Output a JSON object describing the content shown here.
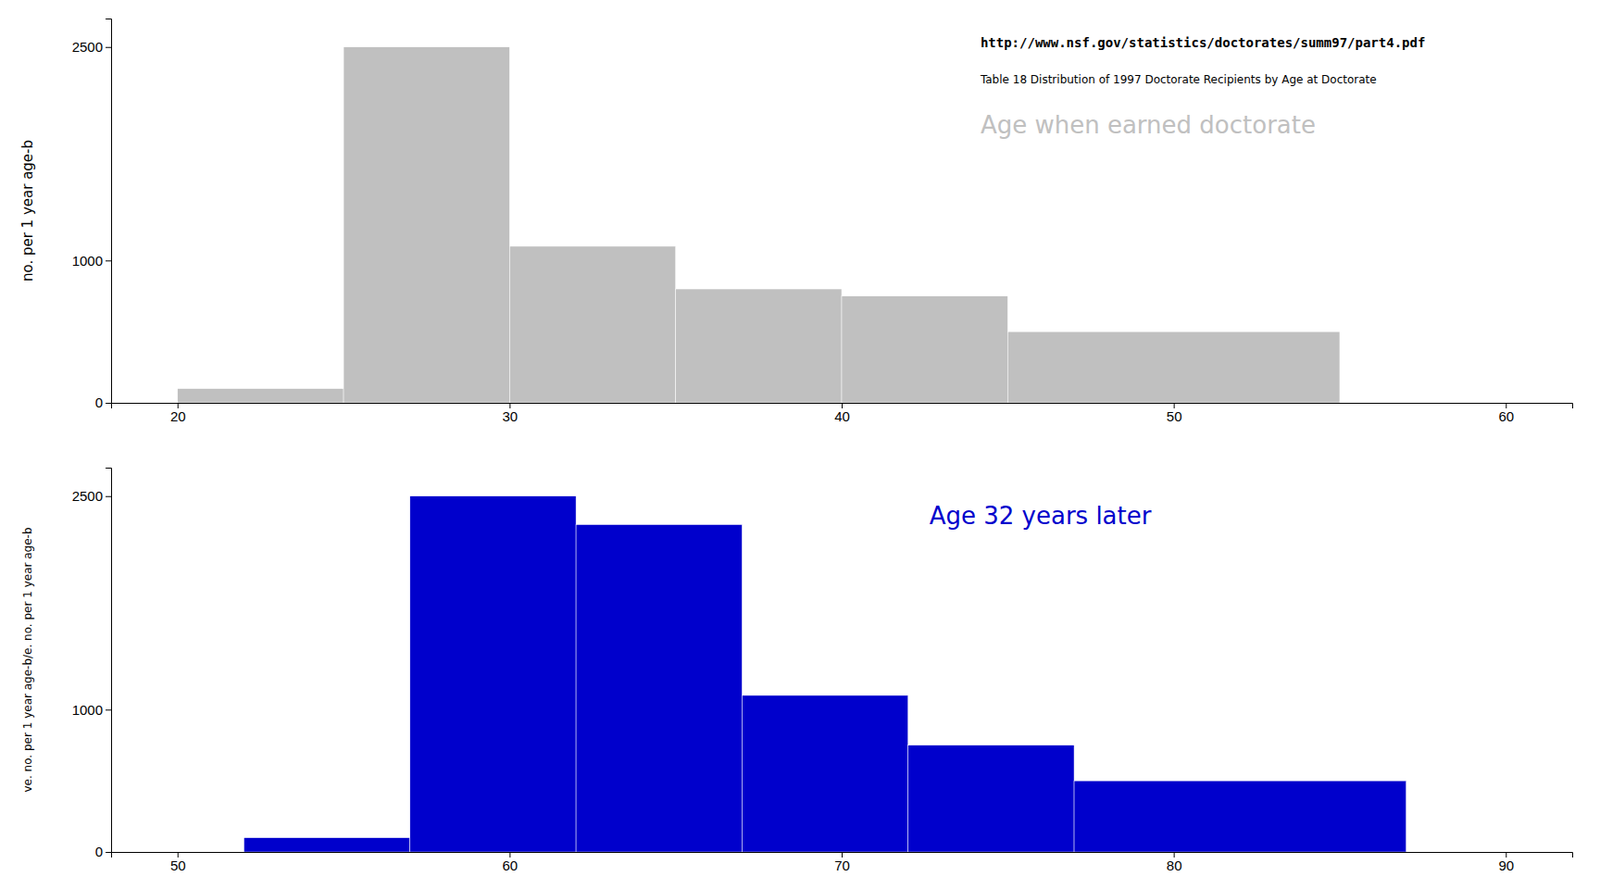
{
  "chart_data": [
    {
      "type": "histogram",
      "bins": [
        20,
        25,
        30,
        35,
        40,
        45,
        55
      ],
      "series": [
        {
          "name": "Age when earned doctorate",
          "color": "#c0c0c0",
          "values": [
            100,
            2500,
            1100,
            800,
            750,
            500
          ]
        }
      ],
      "xlim": [
        18,
        62
      ],
      "xticks": [
        20,
        30,
        40,
        50,
        60
      ],
      "ylim": [
        0,
        2700
      ],
      "yticks": [
        0,
        1000,
        2500
      ],
      "ylabel": "no. per 1 year age-b",
      "annotations": [
        "http://www.nsf.gov/statistics/doctorates/summ97/part4.pdf",
        "Table 18 Distribution of 1997 Doctorate Recipients by Age at Doctorate"
      ],
      "grid": false
    },
    {
      "type": "histogram",
      "bins": [
        52,
        57,
        62,
        67,
        72,
        77,
        87
      ],
      "series": [
        {
          "name": "Age 32 years later",
          "color": "#0000cc",
          "values": [
            100,
            2500,
            2300,
            1100,
            750,
            500
          ]
        }
      ],
      "xlim": [
        48,
        92
      ],
      "xticks": [
        50,
        60,
        70,
        80,
        90
      ],
      "ylim": [
        0,
        2700
      ],
      "yticks": [
        0,
        1000,
        2500
      ],
      "ylabel": "ve. no. per 1 year age-b/e. no. per 1 year age-b",
      "grid": false
    }
  ]
}
